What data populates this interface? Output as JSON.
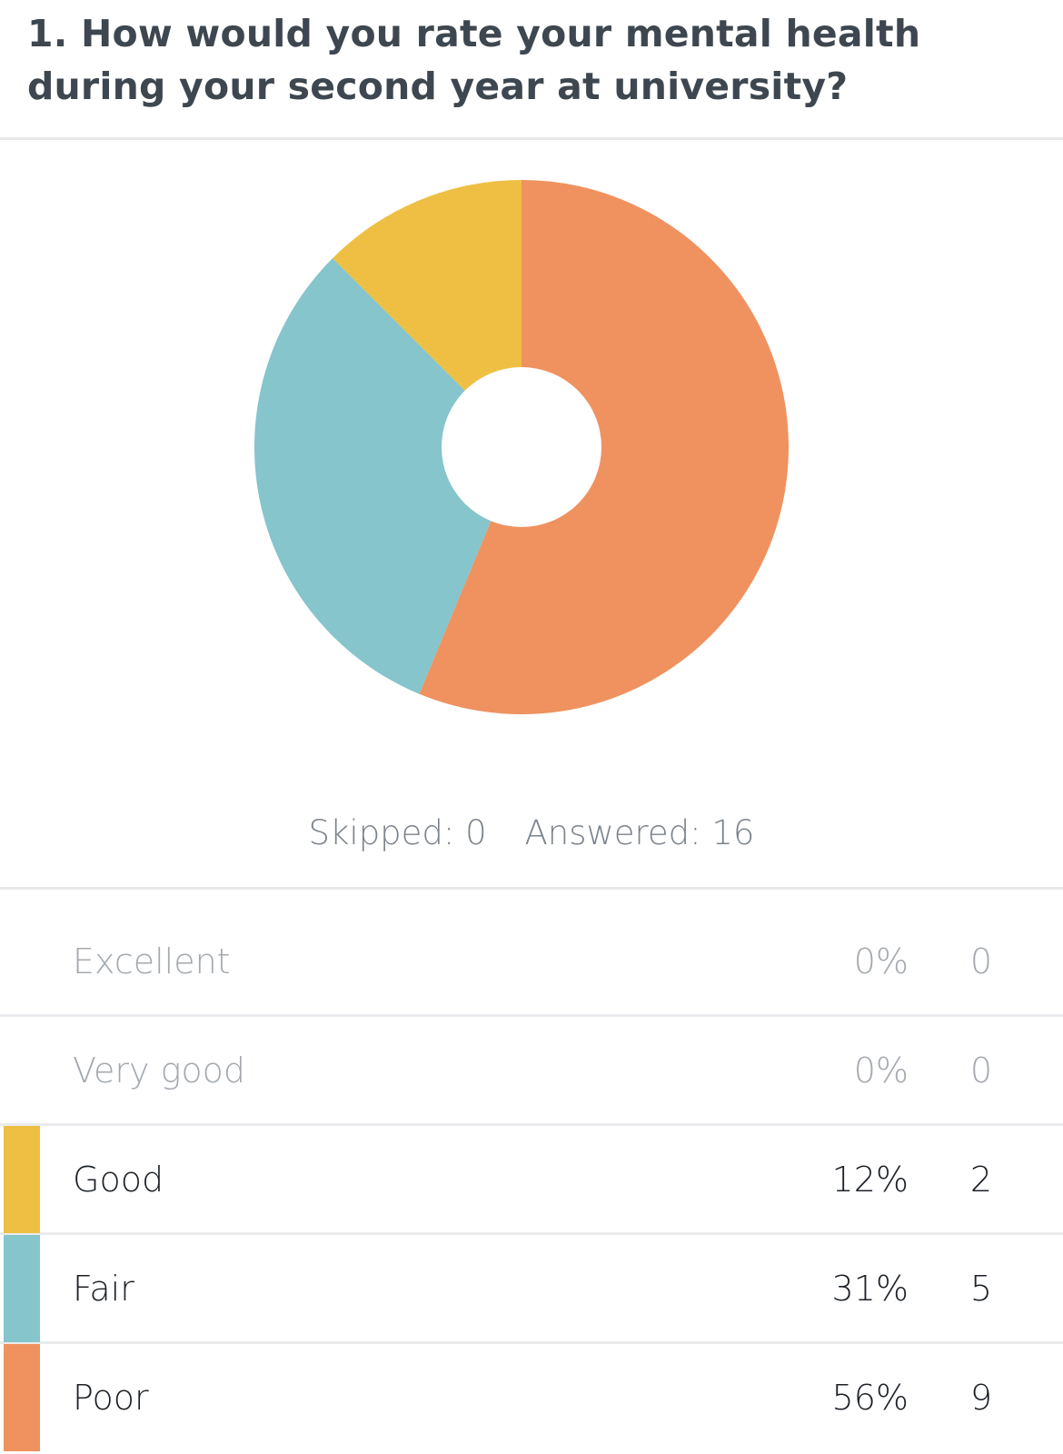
{
  "question": {
    "title": "1. How would you rate your mental health during your second year at university?"
  },
  "summary": {
    "skipped": "Skipped: 0",
    "answered": "Answered: 16"
  },
  "colors": {
    "good": "#efbf44",
    "fair": "#85c5cb",
    "poor": "#ef925f"
  },
  "rows": [
    {
      "label": "Excellent",
      "percent": "0%",
      "count": "0"
    },
    {
      "label": "Very good",
      "percent": "0%",
      "count": "0"
    },
    {
      "label": "Good",
      "percent": "12%",
      "count": "2"
    },
    {
      "label": "Fair",
      "percent": "31%",
      "count": "5"
    },
    {
      "label": "Poor",
      "percent": "56%",
      "count": "9"
    }
  ],
  "chart_data": {
    "type": "pie",
    "style": "donut",
    "total": 16,
    "slices": [
      {
        "name": "Poor",
        "value": 9,
        "color": "#ef925f"
      },
      {
        "name": "Fair",
        "value": 5,
        "color": "#85c5cb"
      },
      {
        "name": "Good",
        "value": 2,
        "color": "#efbf44"
      }
    ]
  }
}
